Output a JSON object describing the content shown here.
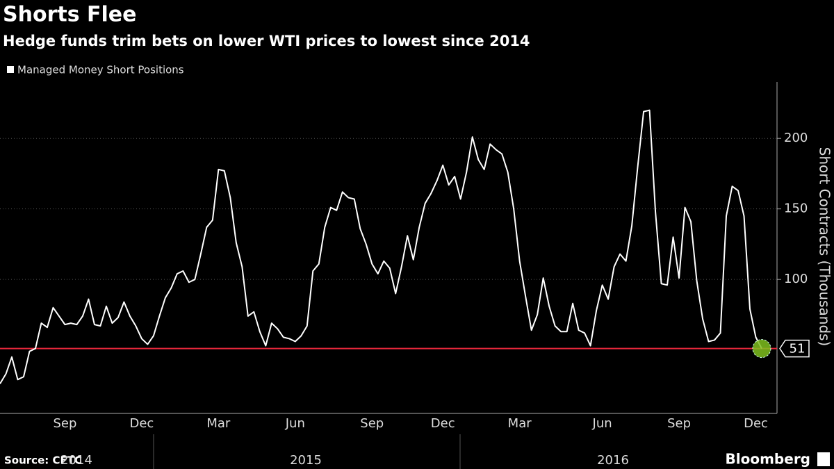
{
  "chart_data": {
    "type": "line",
    "title": "Shorts Flee",
    "subtitle": "Hedge funds trim bets on lower WTI prices to lowest since 2014",
    "y_label": "Short Contracts (Thousands)",
    "source": "Source: CFTC",
    "brand": "Bloomberg",
    "categories": [
      null,
      null,
      null,
      null,
      null,
      null,
      null,
      null,
      null,
      null,
      null,
      "Sep",
      null,
      null,
      null,
      null,
      null,
      null,
      null,
      null,
      null,
      null,
      null,
      null,
      "Dec",
      null,
      null,
      null,
      null,
      null,
      null,
      null,
      null,
      null,
      null,
      null,
      null,
      "Mar",
      null,
      null,
      null,
      null,
      null,
      null,
      null,
      null,
      null,
      null,
      null,
      null,
      "Jun",
      null,
      null,
      null,
      null,
      null,
      null,
      null,
      null,
      null,
      null,
      null,
      null,
      "Sep",
      null,
      null,
      null,
      null,
      null,
      null,
      null,
      null,
      null,
      null,
      null,
      "Dec",
      null,
      null,
      null,
      null,
      null,
      null,
      null,
      null,
      null,
      null,
      null,
      null,
      "Mar",
      null,
      null,
      null,
      null,
      null,
      null,
      null,
      null,
      null,
      null,
      null,
      null,
      null,
      "Jun",
      null,
      null,
      null,
      null,
      null,
      null,
      null,
      null,
      null,
      null,
      null,
      null,
      "Sep",
      null,
      null,
      null,
      null,
      null,
      null,
      null,
      null,
      null,
      null,
      null,
      null,
      "Dec",
      null
    ],
    "x_group_labels": [
      "2014",
      "2015",
      "2016"
    ],
    "series": [
      {
        "name": "Managed Money Short Positions",
        "color": "#ffffff",
        "values": [
          26,
          33,
          45,
          29,
          31,
          49,
          51,
          69,
          66,
          80,
          74,
          68,
          69,
          68,
          74,
          86,
          68,
          67,
          81,
          69,
          73,
          84,
          74,
          67,
          58,
          54,
          60,
          74,
          87,
          94,
          104,
          106,
          98,
          100,
          118,
          137,
          142,
          178,
          177,
          158,
          126,
          109,
          74,
          77,
          63,
          53,
          69,
          65,
          59,
          58,
          56,
          60,
          67,
          106,
          111,
          137,
          151,
          149,
          162,
          158,
          157,
          136,
          125,
          111,
          104,
          113,
          108,
          90,
          109,
          131,
          114,
          137,
          154,
          161,
          170,
          181,
          167,
          173,
          157,
          176,
          201,
          185,
          178,
          196,
          192,
          189,
          176,
          150,
          113,
          88,
          64,
          75,
          101,
          81,
          67,
          63,
          63,
          83,
          64,
          62,
          53,
          78,
          96,
          86,
          109,
          118,
          113,
          138,
          180,
          219,
          220,
          148,
          97,
          96,
          130,
          101,
          151,
          141,
          99,
          72,
          56,
          57,
          62,
          145,
          166,
          163,
          145,
          79,
          59,
          51
        ]
      }
    ],
    "reference_line": {
      "value": 51,
      "color": "#e8283c"
    },
    "last_marker_color": "#7fbf1f",
    "ylim": [
      5,
      240
    ],
    "yticks": [
      100,
      150,
      200
    ],
    "grid": true
  }
}
